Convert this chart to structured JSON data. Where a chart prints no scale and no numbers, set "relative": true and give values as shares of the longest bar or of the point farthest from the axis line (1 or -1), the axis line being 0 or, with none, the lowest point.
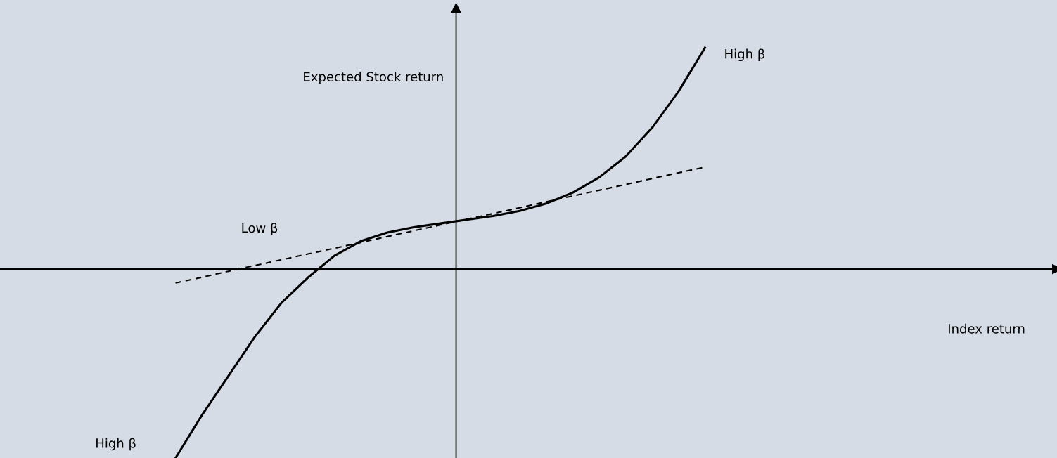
{
  "chart_data": {
    "type": "line",
    "relative": true,
    "categories": [
      null,
      null,
      null,
      null,
      null,
      null,
      null,
      null,
      null,
      null,
      null,
      null,
      null,
      null,
      null,
      null,
      null,
      null,
      null,
      null,
      null
    ],
    "series": [
      {
        "color": "#000000",
        "line_style": "solid",
        "values": [
          -0.854,
          -0.66,
          -0.483,
          -0.306,
          -0.153,
          -0.039,
          0.06,
          0.126,
          0.165,
          0.189,
          0.206,
          0.223,
          0.24,
          0.263,
          0.296,
          0.345,
          0.414,
          0.508,
          0.638,
          0.802,
          1.0
        ]
      },
      {
        "color": "#000000",
        "line_style": "dashed",
        "values": [
          -0.063,
          -0.037,
          -0.01,
          0.016,
          0.042,
          0.068,
          0.094,
          0.12,
          0.147,
          0.173,
          0.199,
          0.225,
          0.251,
          0.277,
          0.304,
          0.33,
          0.356,
          0.382,
          0.409,
          0.435,
          0.461
        ]
      }
    ],
    "annotations": [
      "Expected Stock return",
      "High β",
      "Low β",
      "High β",
      "Index return"
    ]
  }
}
